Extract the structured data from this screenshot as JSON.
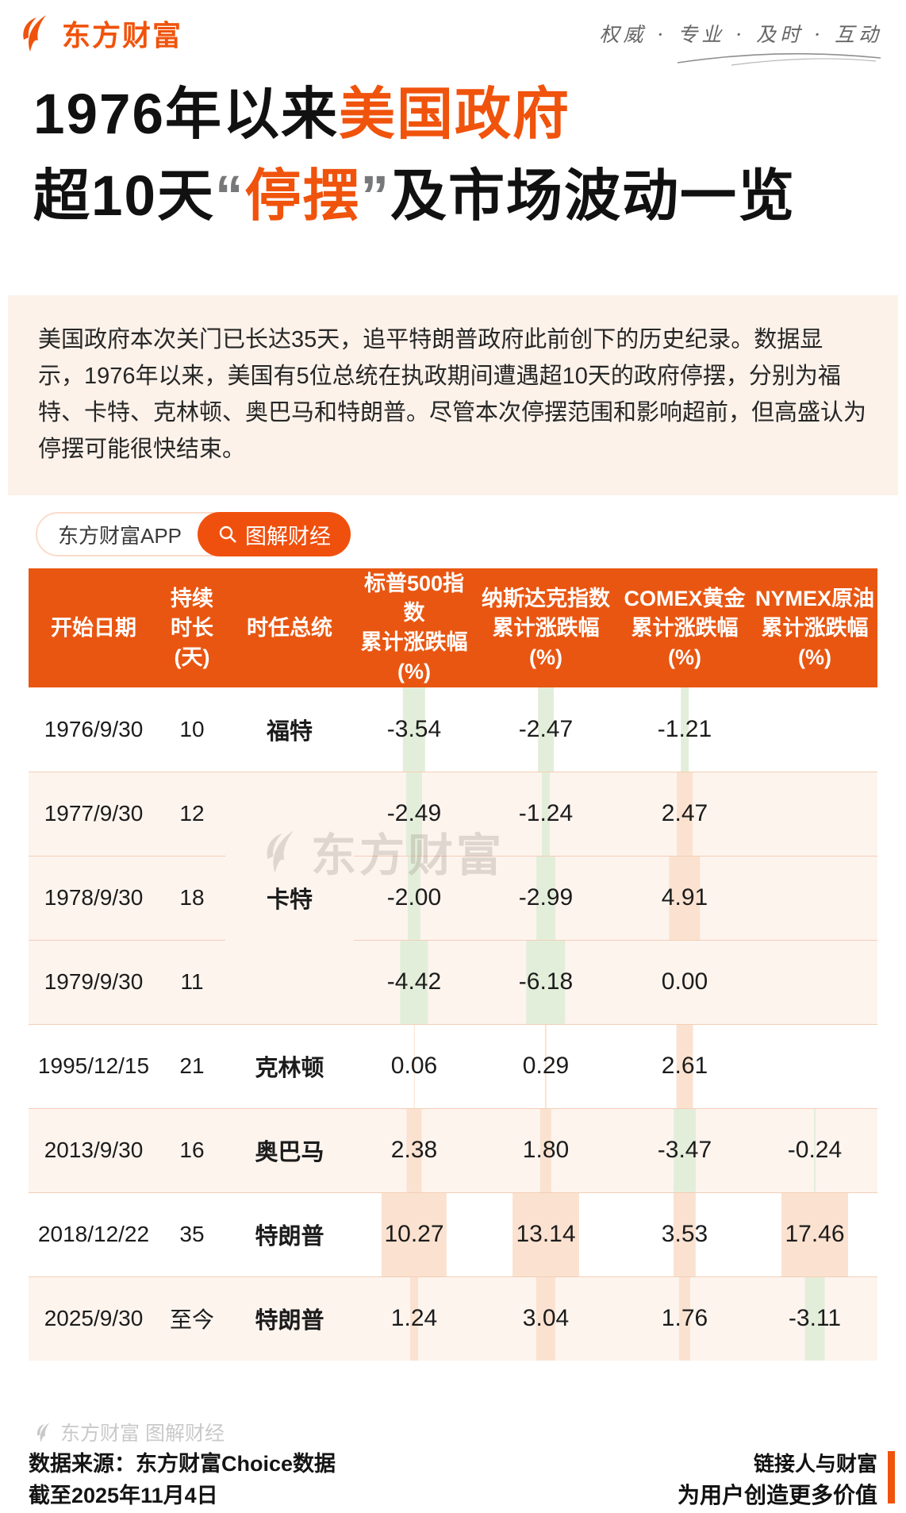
{
  "colors": {
    "accent": "#f0530c",
    "table_header_bg": "#e95611",
    "bar_positive": "#fbe2d0",
    "bar_negative": "#e3eeda",
    "row_shaded_bg": "#fdf4ee",
    "divider": "#f3ceb6",
    "intro_bg": "#fcf2ea"
  },
  "topbar": {
    "brand": "东方财富",
    "slogan": "权威 · 专业 · 及时 · 互动"
  },
  "title": {
    "l1_black": "1976年以来",
    "l1_orange": "美国政府",
    "l2_pre": "超10天",
    "l2_quote_open": "“",
    "l2_orange": "停摆",
    "l2_quote_close": "”",
    "l2_post": "及市场波动一览"
  },
  "intro": "美国政府本次关门已长达35天，追平特朗普政府此前创下的历史纪录。数据显示，1976年以来，美国有5位总统在执政期间遭遇超10天的政府停摆，分别为福特、卡特、克林顿、奥巴马和特朗普。尽管本次停摆范围和影响超前，但高盛认为停摆可能很快结束。",
  "badge": {
    "app": "东方财富APP",
    "tag": "图解财经",
    "search_icon": "magnifier-icon"
  },
  "table": {
    "headers": {
      "date": "开始日期",
      "days": "持续时长\n(天)",
      "president": "时任总统",
      "sp500": "标普500指数\n累计涨跌幅\n(%)",
      "nasdaq": "纳斯达克指数\n累计涨跌幅\n(%)",
      "comex": "COMEX黄金\n累计涨跌幅\n(%)",
      "nymex": "NYMEX原油\n累计涨跌幅\n(%)"
    },
    "rows": [
      {
        "date": "1976/9/30",
        "days": "10",
        "president": "福特",
        "sp500": "-3.54",
        "nasdaq": "-2.47",
        "comex": "-1.21",
        "nymex": ""
      },
      {
        "date": "1977/9/30",
        "days": "12",
        "president": "卡特",
        "sp500": "-2.49",
        "nasdaq": "-1.24",
        "comex": "2.47",
        "nymex": ""
      },
      {
        "date": "1978/9/30",
        "days": "18",
        "sp500": "-2.00",
        "nasdaq": "-2.99",
        "comex": "4.91",
        "nymex": ""
      },
      {
        "date": "1979/9/30",
        "days": "11",
        "sp500": "-4.42",
        "nasdaq": "-6.18",
        "comex": "0.00",
        "nymex": ""
      },
      {
        "date": "1995/12/15",
        "days": "21",
        "president": "克林顿",
        "sp500": "0.06",
        "nasdaq": "0.29",
        "comex": "2.61",
        "nymex": ""
      },
      {
        "date": "2013/9/30",
        "days": "16",
        "president": "奥巴马",
        "sp500": "2.38",
        "nasdaq": "1.80",
        "comex": "-3.47",
        "nymex": "-0.24"
      },
      {
        "date": "2018/12/22",
        "days": "35",
        "president": "特朗普",
        "sp500": "10.27",
        "nasdaq": "13.14",
        "comex": "3.53",
        "nymex": "17.46"
      },
      {
        "date": "2025/9/30",
        "days": "至今",
        "president": "特朗普",
        "sp500": "1.24",
        "nasdaq": "3.04",
        "comex": "1.76",
        "nymex": "-3.11"
      }
    ]
  },
  "watermark": "东方财富",
  "footer": {
    "brand_line": "东方财富 图解财经",
    "source_line1": "数据来源：东方财富Choice数据",
    "source_line2": "截至2025年11月4日",
    "slogan_line1": "链接人与财富",
    "slogan_line2": "为用户创造更多价值"
  },
  "chart_data": {
    "type": "table",
    "title": "1976年以来美国政府超10天“停摆”及市场波动一览",
    "columns": [
      "开始日期",
      "持续时长(天)",
      "时任总统",
      "标普500指数累计涨跌幅(%)",
      "纳斯达克指数累计涨跌幅(%)",
      "COMEX黄金累计涨跌幅(%)",
      "NYMEX原油累计涨跌幅(%)"
    ],
    "rows": [
      [
        "1976/9/30",
        10,
        "福特",
        -3.54,
        -2.47,
        -1.21,
        null
      ],
      [
        "1977/9/30",
        12,
        "卡特",
        -2.49,
        -1.24,
        2.47,
        null
      ],
      [
        "1978/9/30",
        18,
        "卡特",
        -2.0,
        -2.99,
        4.91,
        null
      ],
      [
        "1979/9/30",
        11,
        "卡特",
        -4.42,
        -6.18,
        0.0,
        null
      ],
      [
        "1995/12/15",
        21,
        "克林顿",
        0.06,
        0.29,
        2.61,
        null
      ],
      [
        "2013/9/30",
        16,
        "奥巴马",
        2.38,
        1.8,
        -3.47,
        -0.24
      ],
      [
        "2018/12/22",
        35,
        "特朗普",
        10.27,
        13.14,
        3.53,
        17.46
      ],
      [
        "2025/9/30",
        "至今",
        "特朗普",
        1.24,
        3.04,
        1.76,
        -3.11
      ]
    ],
    "layout_hints": "negative values shown with light-green column bars, positive values with light-orange bars; bar width proportional to |value|"
  }
}
